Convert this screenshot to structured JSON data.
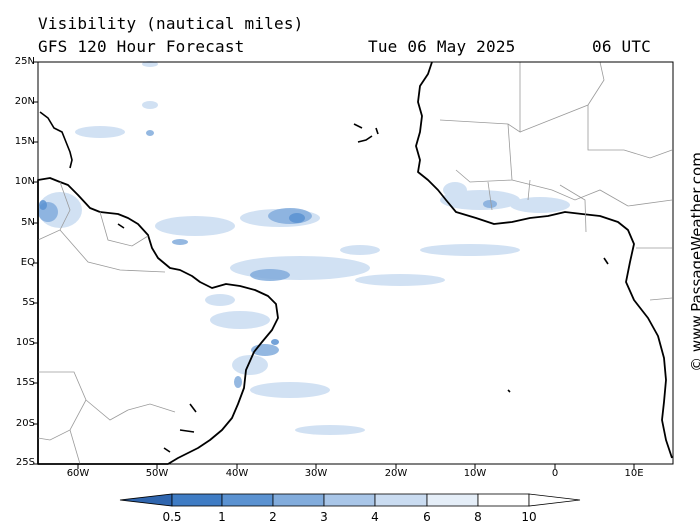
{
  "header": {
    "title": "Visibility (nautical miles)",
    "subtitle": "GFS 120 Hour Forecast",
    "date": "Tue 06 May 2025",
    "time": "06 UTC"
  },
  "credit": "© www.PassageWeather.com",
  "lat_labels": [
    "25N",
    "20N",
    "15N",
    "10N",
    "5N",
    "EQ",
    "5S",
    "10S",
    "15S",
    "20S",
    "25S"
  ],
  "lon_labels": [
    "60W",
    "50W",
    "40W",
    "30W",
    "20W",
    "10W",
    "0",
    "10E"
  ],
  "colorbar": {
    "labels": [
      "0.5",
      "1",
      "2",
      "3",
      "4",
      "6",
      "8",
      "10"
    ],
    "colors": [
      "#2f65ae",
      "#3f7cc4",
      "#5b92d1",
      "#82acdc",
      "#a9c6e8",
      "#cadcf1",
      "#e5eef8",
      "#ffffff"
    ]
  },
  "colors": {
    "land_border": "#000000",
    "country_border": "#9a9a9a",
    "fog_light": "#cadcf1",
    "fog_medium": "#82acdc",
    "fog_dense": "#5b92d1"
  }
}
